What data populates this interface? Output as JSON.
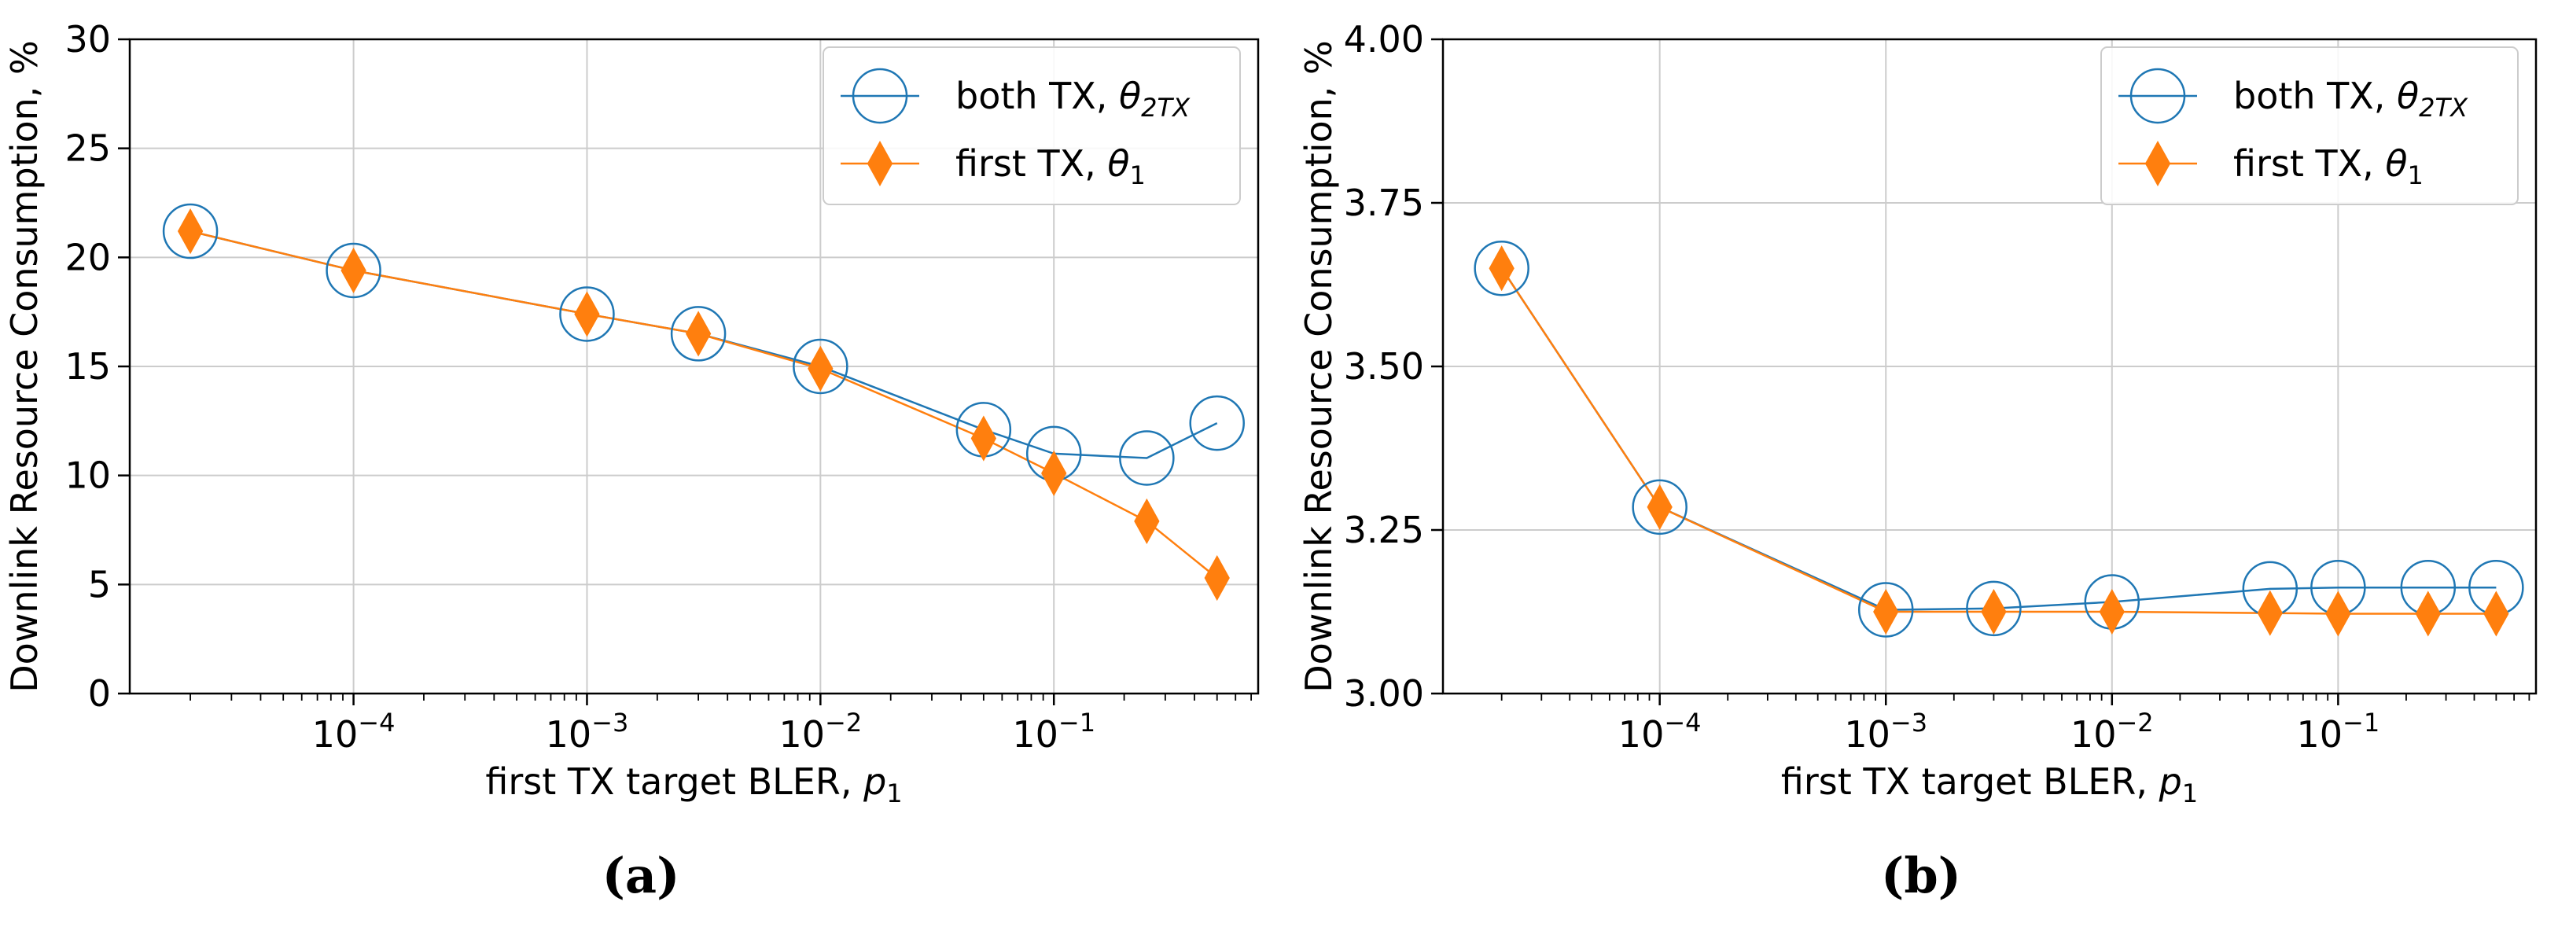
{
  "colors": {
    "series_both": "#1f77b4",
    "series_first": "#ff7f0e",
    "grid": "#cccccc",
    "axis": "#000000"
  },
  "chart_data": [
    {
      "id": "a",
      "caption": "(a)",
      "type": "line",
      "xscale": "log",
      "xlim": [
        1.1e-05,
        0.75
      ],
      "ylim": [
        0,
        30
      ],
      "xticks": [
        {
          "value": 0.0001,
          "base": "10",
          "exp": "−4"
        },
        {
          "value": 0.001,
          "base": "10",
          "exp": "−3"
        },
        {
          "value": 0.01,
          "base": "10",
          "exp": "−2"
        },
        {
          "value": 0.1,
          "base": "10",
          "exp": "−1"
        }
      ],
      "yticks": [
        0,
        5,
        10,
        15,
        20,
        25,
        30
      ],
      "ytick_labels": [
        "0",
        "5",
        "10",
        "15",
        "20",
        "25",
        "30"
      ],
      "xlabel": {
        "text": "first TX target BLER, ",
        "sym": "p",
        "sub": "1"
      },
      "ylabel": "Downlink Resource Consumption, %",
      "grid": true,
      "legend_position": "top-right",
      "x": [
        2e-05,
        0.0001,
        0.001,
        0.003,
        0.01,
        0.05,
        0.1,
        0.25,
        0.5
      ],
      "series": [
        {
          "name": "both TX",
          "sym": "θ",
          "sub": "2TX",
          "marker": "circle",
          "values": [
            21.2,
            19.4,
            17.4,
            16.5,
            15.0,
            12.1,
            11.0,
            10.8,
            12.4
          ]
        },
        {
          "name": "first TX",
          "sym": "θ",
          "sub": "1",
          "marker": "diamond",
          "values": [
            21.2,
            19.4,
            17.4,
            16.5,
            14.9,
            11.7,
            10.1,
            7.9,
            5.3
          ]
        }
      ]
    },
    {
      "id": "b",
      "caption": "(b)",
      "type": "line",
      "xscale": "log",
      "xlim": [
        1.1e-05,
        0.75
      ],
      "ylim": [
        3.0,
        4.0
      ],
      "xticks": [
        {
          "value": 0.0001,
          "base": "10",
          "exp": "−4"
        },
        {
          "value": 0.001,
          "base": "10",
          "exp": "−3"
        },
        {
          "value": 0.01,
          "base": "10",
          "exp": "−2"
        },
        {
          "value": 0.1,
          "base": "10",
          "exp": "−1"
        }
      ],
      "yticks": [
        3.0,
        3.25,
        3.5,
        3.75,
        4.0
      ],
      "ytick_labels": [
        "3.00",
        "3.25",
        "3.50",
        "3.75",
        "4.00"
      ],
      "xlabel": {
        "text": "first TX target BLER, ",
        "sym": "p",
        "sub": "1"
      },
      "ylabel": "Downlink Resource Consumption, %",
      "grid": true,
      "legend_position": "top-right",
      "x": [
        2e-05,
        0.0001,
        0.001,
        0.003,
        0.01,
        0.05,
        0.1,
        0.25,
        0.5
      ],
      "series": [
        {
          "name": "both TX",
          "sym": "θ",
          "sub": "2TX",
          "marker": "circle",
          "values": [
            3.65,
            3.285,
            3.128,
            3.13,
            3.14,
            3.16,
            3.162,
            3.162,
            3.162
          ]
        },
        {
          "name": "first TX",
          "sym": "θ",
          "sub": "1",
          "marker": "diamond",
          "values": [
            3.65,
            3.285,
            3.125,
            3.125,
            3.125,
            3.123,
            3.122,
            3.122,
            3.122
          ]
        }
      ]
    }
  ]
}
